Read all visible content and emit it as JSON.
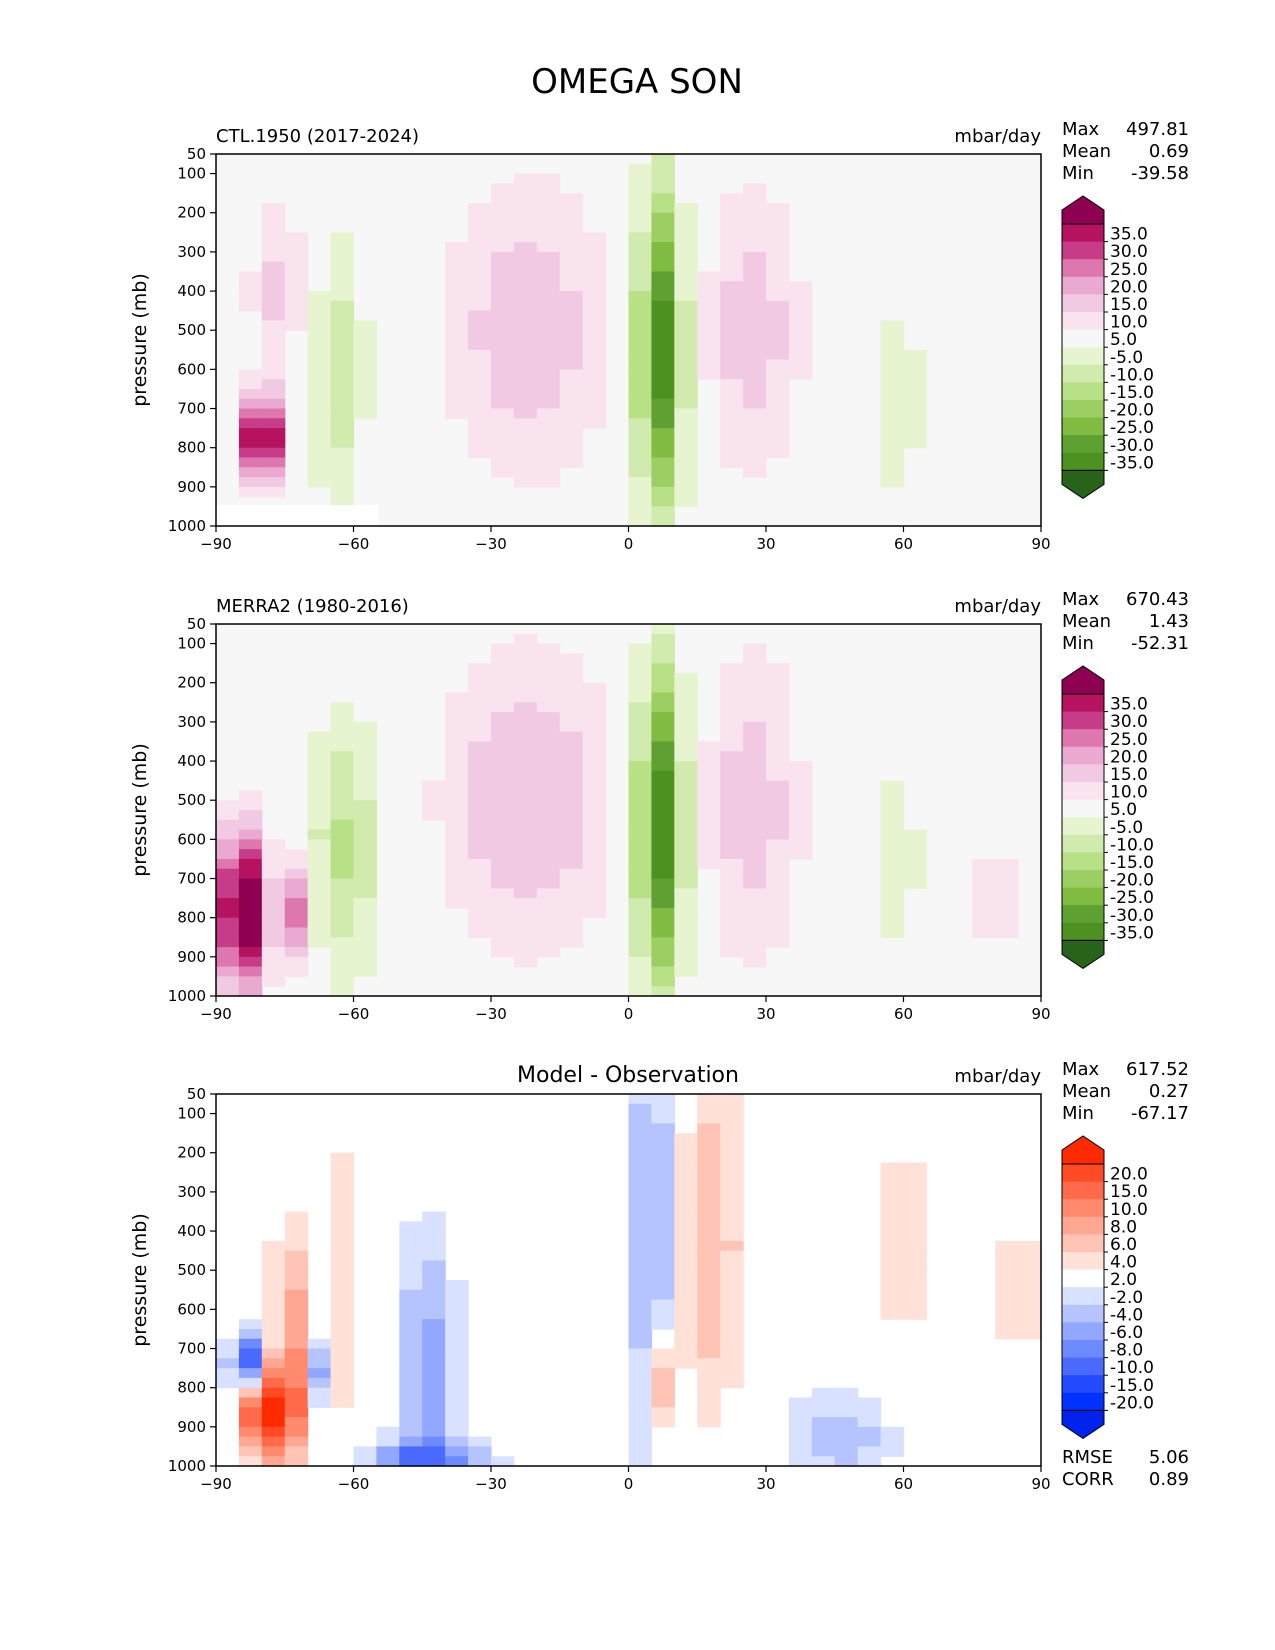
{
  "figure": {
    "title": "OMEGA SON"
  },
  "chart_data": [
    {
      "type": "heatmap",
      "panel": "model",
      "title": "CTL.1950 (2017-2024)",
      "units": "mbar/day",
      "ylabel": "pressure (mb)",
      "xlim": [
        -90,
        90
      ],
      "ylim": [
        1000,
        50
      ],
      "xticks": [
        "−90",
        "−60",
        "−30",
        "0",
        "30",
        "60",
        "90"
      ],
      "yticks": [
        "50",
        "100",
        "200",
        "300",
        "400",
        "500",
        "600",
        "700",
        "800",
        "900",
        "1000"
      ],
      "stats": {
        "max_label": "Max",
        "max": "497.81",
        "mean_label": "Mean",
        "mean": "0.69",
        "min_label": "Min",
        "min": "-39.58"
      },
      "colorbar": {
        "labels": [
          "35.0",
          "30.0",
          "25.0",
          "20.0",
          "15.0",
          "10.0",
          "5.0",
          "-5.0",
          "-10.0",
          "-15.0",
          "-20.0",
          "-25.0",
          "-30.0",
          "-35.0"
        ],
        "colors": [
          "#8e0152",
          "#b5125f",
          "#c73c89",
          "#de77ae",
          "#eaa9d0",
          "#f2c9e2",
          "#f9e3ef",
          "#f7f7f7",
          "#e6f5d0",
          "#d0ebad",
          "#b8e186",
          "#9bcf63",
          "#7fbc41",
          "#5fa033",
          "#4d9221",
          "#276419"
        ]
      },
      "features": [
        {
          "lon": -80,
          "p": 780,
          "sigma_lon": 3.5,
          "sigma_p": 80,
          "amp": 40
        },
        {
          "lon": -76,
          "p": 400,
          "sigma_lon": 5,
          "sigma_p": 170,
          "amp": 12
        },
        {
          "lon": -64,
          "p": 600,
          "sigma_lon": 5,
          "sigma_p": 250,
          "amp": -14
        },
        {
          "lon": -22,
          "p": 500,
          "sigma_lon": 13,
          "sigma_p": 280,
          "amp": 14
        },
        {
          "lon": 7,
          "p": 550,
          "sigma_lon": 3.8,
          "sigma_p": 300,
          "amp": -40
        },
        {
          "lon": 27,
          "p": 500,
          "sigma_lon": 8,
          "sigma_p": 280,
          "amp": 13
        },
        {
          "lon": 58,
          "p": 680,
          "sigma_lon": 5,
          "sigma_p": 200,
          "amp": -9
        },
        {
          "lon": 80,
          "p": 720,
          "sigma_lon": 2,
          "sigma_p": 150,
          "amp": 8
        }
      ]
    },
    {
      "type": "heatmap",
      "panel": "observation",
      "title": "MERRA2 (1980-2016)",
      "units": "mbar/day",
      "ylabel": "pressure (mb)",
      "xlim": [
        -90,
        90
      ],
      "ylim": [
        1000,
        50
      ],
      "xticks": [
        "−90",
        "−60",
        "−30",
        "0",
        "30",
        "60",
        "90"
      ],
      "yticks": [
        "50",
        "100",
        "200",
        "300",
        "400",
        "500",
        "600",
        "700",
        "800",
        "900",
        "1000"
      ],
      "stats": {
        "max_label": "Max",
        "max": "670.43",
        "mean_label": "Mean",
        "mean": "1.43",
        "min_label": "Min",
        "min": "-52.31"
      },
      "colorbar": {
        "labels": [
          "35.0",
          "30.0",
          "25.0",
          "20.0",
          "15.0",
          "10.0",
          "5.0",
          "-5.0",
          "-10.0",
          "-15.0",
          "-20.0",
          "-25.0",
          "-30.0",
          "-35.0"
        ],
        "colors": [
          "#8e0152",
          "#b5125f",
          "#c73c89",
          "#de77ae",
          "#eaa9d0",
          "#f2c9e2",
          "#f9e3ef",
          "#f7f7f7",
          "#e6f5d0",
          "#d0ebad",
          "#b8e186",
          "#9bcf63",
          "#7fbc41",
          "#5fa033",
          "#4d9221",
          "#276419"
        ]
      },
      "features": [
        {
          "lon": -84,
          "p": 780,
          "sigma_lon": 4,
          "sigma_p": 150,
          "amp": 45
        },
        {
          "lon": -72,
          "p": 780,
          "sigma_lon": 2,
          "sigma_p": 100,
          "amp": 25
        },
        {
          "lon": -62,
          "p": 620,
          "sigma_lon": 6,
          "sigma_p": 250,
          "amp": -16
        },
        {
          "lon": -22,
          "p": 500,
          "sigma_lon": 14,
          "sigma_p": 280,
          "amp": 15
        },
        {
          "lon": 7,
          "p": 560,
          "sigma_lon": 3.8,
          "sigma_p": 300,
          "amp": -42
        },
        {
          "lon": 27,
          "p": 520,
          "sigma_lon": 8,
          "sigma_p": 300,
          "amp": 13
        },
        {
          "lon": 58,
          "p": 650,
          "sigma_lon": 5,
          "sigma_p": 220,
          "amp": -8
        },
        {
          "lon": 80,
          "p": 750,
          "sigma_lon": 3,
          "sigma_p": 150,
          "amp": 9
        }
      ]
    },
    {
      "type": "heatmap",
      "panel": "difference",
      "title": "Model - Observation",
      "units": "mbar/day",
      "ylabel": "pressure (mb)",
      "xlim": [
        -90,
        90
      ],
      "ylim": [
        1000,
        50
      ],
      "xticks": [
        "−90",
        "−60",
        "−30",
        "0",
        "30",
        "60",
        "90"
      ],
      "yticks": [
        "50",
        "100",
        "200",
        "300",
        "400",
        "500",
        "600",
        "700",
        "800",
        "900",
        "1000"
      ],
      "stats": {
        "max_label": "Max",
        "max": "617.52",
        "mean_label": "Mean",
        "mean": "0.27",
        "min_label": "Min",
        "min": "-67.17"
      },
      "rmse_label": "RMSE",
      "rmse": "5.06",
      "corr_label": "CORR",
      "corr": "0.89",
      "colorbar": {
        "labels": [
          "20.0",
          "15.0",
          "10.0",
          "8.0",
          "6.0",
          "4.0",
          "2.0",
          "-2.0",
          "-4.0",
          "-6.0",
          "-8.0",
          "-10.0",
          "-15.0",
          "-20.0"
        ],
        "colors": [
          "#ff2b00",
          "#ff4a23",
          "#ff6a4a",
          "#ff8a6e",
          "#ffa792",
          "#ffc4b5",
          "#ffe1d8",
          "#ffffff",
          "#d8e1ff",
          "#b5c4ff",
          "#92a7ff",
          "#6e8aff",
          "#4a6aff",
          "#234aff",
          "#0033ff",
          "#0022ee"
        ]
      },
      "features": [
        {
          "lon": -83,
          "p": 740,
          "sigma_lon": 3,
          "sigma_p": 60,
          "amp": -14
        },
        {
          "lon": -79,
          "p": 860,
          "sigma_lon": 3.5,
          "sigma_p": 70,
          "amp": 22
        },
        {
          "lon": -74,
          "p": 720,
          "sigma_lon": 3,
          "sigma_p": 230,
          "amp": 9
        },
        {
          "lon": -68,
          "p": 760,
          "sigma_lon": 1.5,
          "sigma_p": 60,
          "amp": -8
        },
        {
          "lon": -62,
          "p": 520,
          "sigma_lon": 3,
          "sigma_p": 280,
          "amp": 4
        },
        {
          "lon": -44,
          "p": 750,
          "sigma_lon": 5,
          "sigma_p": 260,
          "amp": -7
        },
        {
          "lon": -44,
          "p": 990,
          "sigma_lon": 10,
          "sigma_p": 40,
          "amp": -9
        },
        {
          "lon": 5,
          "p": 420,
          "sigma_lon": 3,
          "sigma_p": 420,
          "amp": -8
        },
        {
          "lon": 7,
          "p": 790,
          "sigma_lon": 2,
          "sigma_p": 90,
          "amp": 9
        },
        {
          "lon": 18,
          "p": 430,
          "sigma_lon": 5,
          "sigma_p": 330,
          "amp": 6
        },
        {
          "lon": 47,
          "p": 930,
          "sigma_lon": 10,
          "sigma_p": 100,
          "amp": -5
        },
        {
          "lon": 60,
          "p": 420,
          "sigma_lon": 4,
          "sigma_p": 320,
          "amp": 3
        },
        {
          "lon": 85,
          "p": 560,
          "sigma_lon": 3,
          "sigma_p": 360,
          "amp": 3
        }
      ]
    }
  ]
}
